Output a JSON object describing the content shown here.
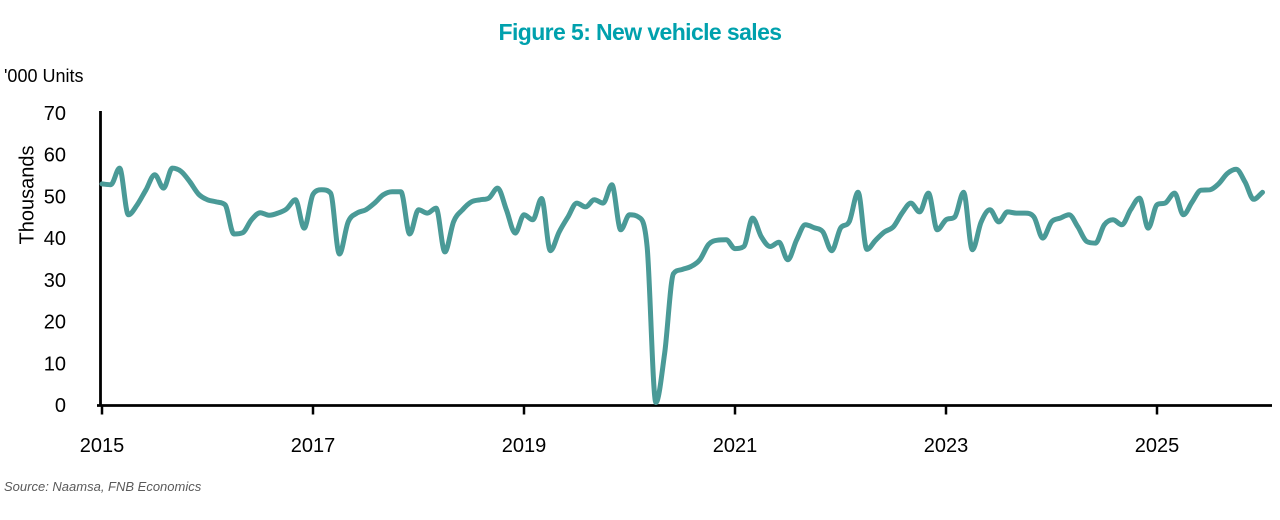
{
  "title": "Figure 5: New vehicle sales",
  "units_label": "'000 Units",
  "y_axis_label": "Thousands",
  "source": "Source: Naamsa, FNB Economics",
  "colors": {
    "title": "#00a1ad",
    "line": "#4a9a97",
    "axis": "#000000",
    "tick_text": "#000000",
    "source_text": "#5a5a5a"
  },
  "chart_data": {
    "type": "line",
    "title": "Figure 5: New vehicle sales",
    "units": "'000 Units",
    "ylabel": "Thousands",
    "frequency": "monthly",
    "x_start": "2015-01",
    "x_end": "2026-01",
    "x_tick_years": [
      2015,
      2017,
      2019,
      2021,
      2023,
      2025
    ],
    "y_ticks": [
      0,
      10,
      20,
      30,
      40,
      50,
      60,
      70
    ],
    "ylim": [
      0,
      70
    ],
    "grid": false,
    "legend_position": "none",
    "series": [
      {
        "name": "New vehicle sales ('000 units per month)",
        "values": [
          53.0,
          52.8,
          56.8,
          45.6,
          48.0,
          51.6,
          55.2,
          52.0,
          56.8,
          56.0,
          53.5,
          50.5,
          49.2,
          48.7,
          48.0,
          41.0,
          41.3,
          44.4,
          46.1,
          45.5,
          46.0,
          47.0,
          49.2,
          42.4,
          50.5,
          51.6,
          50.8,
          36.2,
          43.9,
          46.0,
          46.8,
          48.4,
          50.4,
          51.1,
          51.1,
          41.0,
          46.8,
          46.0,
          47.2,
          36.7,
          44.0,
          46.8,
          48.7,
          49.2,
          49.6,
          52.0,
          46.8,
          41.2,
          45.6,
          44.4,
          49.5,
          37.0,
          41.5,
          45.1,
          48.4,
          47.5,
          49.2,
          48.4,
          52.8,
          42.0,
          45.6,
          45.1,
          38.0,
          0.6,
          12.5,
          31.5,
          32.5,
          33.2,
          34.8,
          38.5,
          39.5,
          39.6,
          37.5,
          38.0,
          44.8,
          40.3,
          38.0,
          39.0,
          34.8,
          39.5,
          43.2,
          42.5,
          41.5,
          37.0,
          42.4,
          44.0,
          51.0,
          37.3,
          39.5,
          41.5,
          42.7,
          46.0,
          48.4,
          46.3,
          50.8,
          42.0,
          44.4,
          45.1,
          51.0,
          37.2,
          43.9,
          46.8,
          43.9,
          46.3,
          46.0,
          46.0,
          45.1,
          40.0,
          43.9,
          44.8,
          45.6,
          42.7,
          39.2,
          38.8,
          43.2,
          44.4,
          43.2,
          46.8,
          49.6,
          42.4,
          48.0,
          48.5,
          50.8,
          45.6,
          48.7,
          51.5,
          51.6,
          53.0,
          55.5,
          56.5,
          53.5,
          49.3,
          51.0
        ]
      }
    ]
  }
}
